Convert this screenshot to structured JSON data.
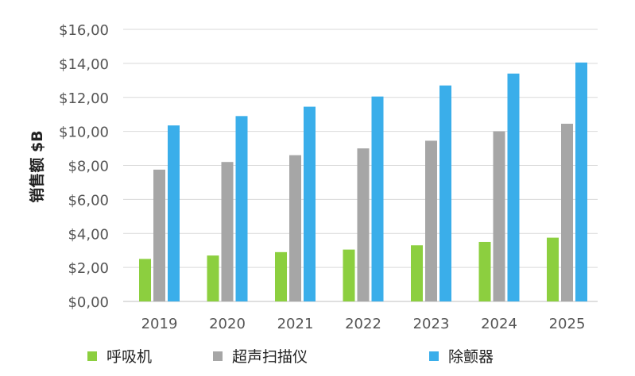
{
  "chart_data": {
    "type": "bar",
    "title": "",
    "xlabel": "",
    "ylabel": "销售额 $B",
    "categories": [
      "2019",
      "2020",
      "2021",
      "2022",
      "2023",
      "2024",
      "2025"
    ],
    "series": [
      {
        "name": "呼吸机",
        "color": "#8ccf3f",
        "values": [
          2.5,
          2.7,
          2.9,
          3.05,
          3.3,
          3.5,
          3.75
        ]
      },
      {
        "name": "超声扫描仪",
        "color": "#a6a6a6",
        "values": [
          7.75,
          8.2,
          8.6,
          9.0,
          9.45,
          10.0,
          10.45
        ]
      },
      {
        "name": "除颤器",
        "color": "#3aaeea",
        "values": [
          10.35,
          10.9,
          11.45,
          12.05,
          12.7,
          13.4,
          14.05
        ]
      }
    ],
    "ylim": [
      0,
      16
    ],
    "yticks": [
      "$0,00",
      "$2,00",
      "$4,00",
      "$6,00",
      "$8,00",
      "$10,00",
      "$12,00",
      "$14,00",
      "$16,00"
    ],
    "ytick_values": [
      0,
      2,
      4,
      6,
      8,
      10,
      12,
      14,
      16
    ],
    "grid": true,
    "legend_position": "bottom"
  }
}
